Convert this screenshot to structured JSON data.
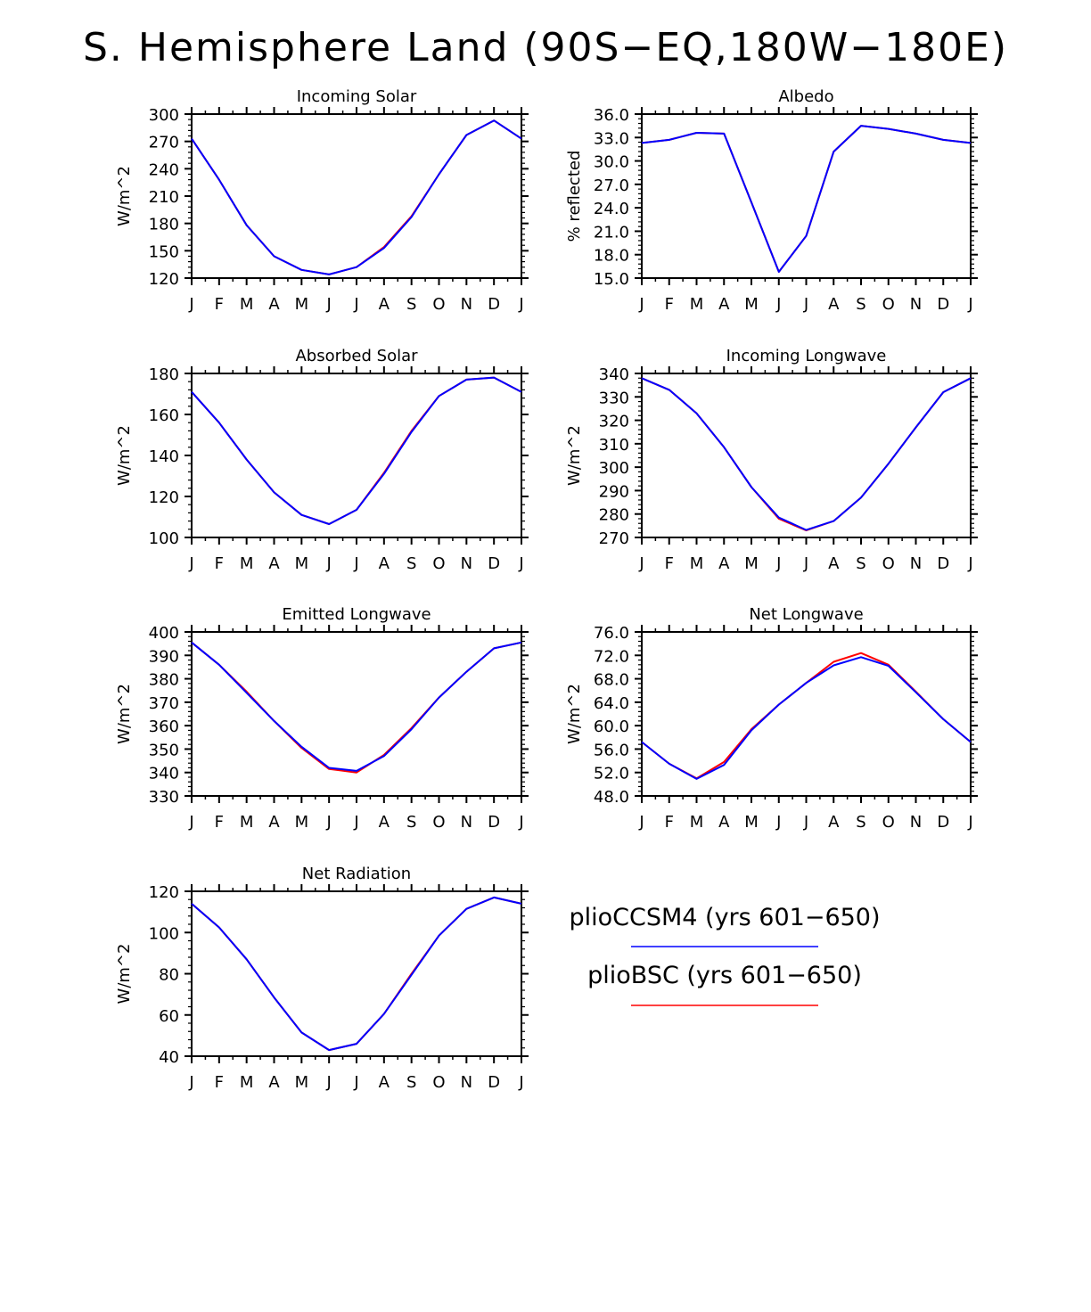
{
  "title": "S. Hemisphere Land (90S−EQ,180W−180E)",
  "legend": [
    {
      "label": "plioCCSM4 (yrs 601−650)",
      "color": "#0000ff"
    },
    {
      "label": "plioBSC (yrs 601−650)",
      "color": "#ff0000"
    }
  ],
  "chart_data": [
    {
      "type": "line",
      "title": "Incoming Solar",
      "ylabel": "W/m^2",
      "categories": [
        "J",
        "F",
        "M",
        "A",
        "M",
        "J",
        "J",
        "A",
        "S",
        "O",
        "N",
        "D",
        "J"
      ],
      "ylim": [
        120,
        300
      ],
      "yticks": [
        "120",
        "150",
        "180",
        "210",
        "240",
        "270",
        "300"
      ],
      "series": [
        {
          "name": "plioBSC (yrs 601−650)",
          "color": "#ff0000",
          "values": [
            273,
            228,
            178,
            144,
            129,
            124,
            132,
            154,
            188,
            234,
            277,
            293,
            273
          ]
        },
        {
          "name": "plioCCSM4 (yrs 601−650)",
          "color": "#0000ff",
          "values": [
            273,
            228,
            178,
            144,
            129,
            124,
            132,
            153,
            187,
            234,
            277,
            293,
            273
          ]
        }
      ]
    },
    {
      "type": "line",
      "title": "Albedo",
      "ylabel": "% reflected",
      "categories": [
        "J",
        "F",
        "M",
        "A",
        "M",
        "J",
        "J",
        "A",
        "S",
        "O",
        "N",
        "D",
        "J"
      ],
      "ylim": [
        15,
        36
      ],
      "yticks": [
        "15.0",
        "18.0",
        "21.0",
        "24.0",
        "27.0",
        "30.0",
        "33.0",
        "36.0"
      ],
      "series": [
        {
          "name": "plioBSC (yrs 601−650)",
          "color": "#ff0000",
          "values": [
            32.3,
            32.7,
            33.6,
            33.5,
            24.7,
            15.8,
            20.4,
            31.2,
            34.5,
            34.1,
            33.5,
            32.7,
            32.3
          ]
        },
        {
          "name": "plioCCSM4 (yrs 601−650)",
          "color": "#0000ff",
          "values": [
            32.3,
            32.7,
            33.6,
            33.5,
            24.7,
            15.8,
            20.4,
            31.2,
            34.5,
            34.1,
            33.5,
            32.7,
            32.3
          ]
        }
      ]
    },
    {
      "type": "line",
      "title": "Absorbed Solar",
      "ylabel": "W/m^2",
      "categories": [
        "J",
        "F",
        "M",
        "A",
        "M",
        "J",
        "J",
        "A",
        "S",
        "O",
        "N",
        "D",
        "J"
      ],
      "ylim": [
        100,
        180
      ],
      "yticks": [
        "100",
        "120",
        "140",
        "160",
        "180"
      ],
      "series": [
        {
          "name": "plioBSC (yrs 601−650)",
          "color": "#ff0000",
          "values": [
            171,
            156,
            138,
            122,
            111,
            106.5,
            113.5,
            131.5,
            152,
            169,
            177,
            178,
            171
          ]
        },
        {
          "name": "plioCCSM4 (yrs 601−650)",
          "color": "#0000ff",
          "values": [
            171,
            156,
            138,
            122,
            111,
            106.5,
            113.5,
            131,
            151.5,
            169,
            177,
            178,
            171
          ]
        }
      ]
    },
    {
      "type": "line",
      "title": "Incoming Longwave",
      "ylabel": "W/m^2",
      "categories": [
        "J",
        "F",
        "M",
        "A",
        "M",
        "J",
        "J",
        "A",
        "S",
        "O",
        "N",
        "D",
        "J"
      ],
      "ylim": [
        270,
        340
      ],
      "yticks": [
        "270",
        "280",
        "290",
        "300",
        "310",
        "320",
        "330",
        "340"
      ],
      "series": [
        {
          "name": "plioBSC (yrs 601−650)",
          "color": "#ff0000",
          "values": [
            338,
            333,
            323,
            308.5,
            291.5,
            278,
            273,
            277,
            287,
            301.5,
            317,
            332,
            338
          ]
        },
        {
          "name": "plioCCSM4 (yrs 601−650)",
          "color": "#0000ff",
          "values": [
            338,
            333,
            323,
            308.5,
            291.5,
            278.5,
            273.2,
            277,
            287,
            301.5,
            317,
            332,
            338
          ]
        }
      ]
    },
    {
      "type": "line",
      "title": "Emitted Longwave",
      "ylabel": "W/m^2",
      "categories": [
        "J",
        "F",
        "M",
        "A",
        "M",
        "J",
        "J",
        "A",
        "S",
        "O",
        "N",
        "D",
        "J"
      ],
      "ylim": [
        330,
        400
      ],
      "yticks": [
        "330",
        "340",
        "350",
        "360",
        "370",
        "380",
        "390",
        "400"
      ],
      "series": [
        {
          "name": "plioBSC (yrs 601−650)",
          "color": "#ff0000",
          "values": [
            395.5,
            386,
            374.5,
            362,
            350.5,
            341.5,
            340,
            347.5,
            359,
            372,
            383,
            393,
            395.5
          ]
        },
        {
          "name": "plioCCSM4 (yrs 601−650)",
          "color": "#0000ff",
          "values": [
            395.5,
            386,
            374,
            362,
            351,
            342,
            340.7,
            347,
            358.5,
            372,
            383,
            393,
            395.5
          ]
        }
      ]
    },
    {
      "type": "line",
      "title": "Net Longwave",
      "ylabel": "W/m^2",
      "categories": [
        "J",
        "F",
        "M",
        "A",
        "M",
        "J",
        "J",
        "A",
        "S",
        "O",
        "N",
        "D",
        "J"
      ],
      "ylim": [
        48,
        76
      ],
      "yticks": [
        "48.0",
        "52.0",
        "56.0",
        "60.0",
        "64.0",
        "68.0",
        "72.0",
        "76.0"
      ],
      "series": [
        {
          "name": "plioBSC (yrs 601−650)",
          "color": "#ff0000",
          "values": [
            57.2,
            53.5,
            51.0,
            53.8,
            59.4,
            63.6,
            67.3,
            70.9,
            72.4,
            70.4,
            65.8,
            61.1,
            57.2
          ]
        },
        {
          "name": "plioCCSM4 (yrs 601−650)",
          "color": "#0000ff",
          "values": [
            57.2,
            53.5,
            50.9,
            53.3,
            59.2,
            63.6,
            67.3,
            70.3,
            71.7,
            70.2,
            65.7,
            61.1,
            57.2
          ]
        }
      ]
    },
    {
      "type": "line",
      "title": "Net Radiation",
      "ylabel": "W/m^2",
      "categories": [
        "J",
        "F",
        "M",
        "A",
        "M",
        "J",
        "J",
        "A",
        "S",
        "O",
        "N",
        "D",
        "J"
      ],
      "ylim": [
        40,
        120
      ],
      "yticks": [
        "40",
        "60",
        "80",
        "100",
        "120"
      ],
      "series": [
        {
          "name": "plioBSC (yrs 601−650)",
          "color": "#ff0000",
          "values": [
            114,
            102.5,
            87,
            68.5,
            51.5,
            43,
            46,
            60.5,
            80,
            98.5,
            111.5,
            117,
            114
          ]
        },
        {
          "name": "plioCCSM4 (yrs 601−650)",
          "color": "#0000ff",
          "values": [
            114,
            102.5,
            87,
            68.5,
            51.5,
            43,
            46,
            60.5,
            79.5,
            98.5,
            111.5,
            117,
            114
          ]
        }
      ]
    }
  ]
}
